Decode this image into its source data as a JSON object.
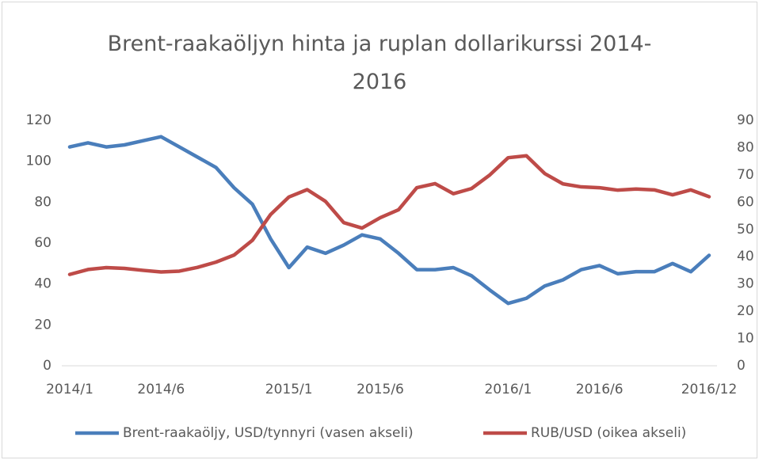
{
  "chart_data": {
    "type": "line",
    "title": "Brent-raakaöljyn hinta ja ruplan dollarikurssi 2014-2016",
    "categories": [
      "2014/1",
      null,
      null,
      null,
      null,
      "2014/6",
      null,
      null,
      null,
      null,
      null,
      null,
      "2015/1",
      null,
      null,
      null,
      null,
      "2015/6",
      null,
      null,
      null,
      null,
      null,
      null,
      "2016/1",
      null,
      null,
      null,
      null,
      "2016/6",
      null,
      null,
      null,
      null,
      null,
      "2016/12"
    ],
    "series": [
      {
        "name": "Brent-raakaöljy, USD/tynnyri (vasen akseli)",
        "color": "#4a7ebb",
        "values": [
          107,
          109,
          107,
          108,
          110,
          112,
          107,
          102,
          97,
          87,
          79,
          62,
          48,
          58,
          55,
          59,
          64,
          62,
          55,
          47,
          47,
          48,
          44,
          37,
          30.5,
          33,
          39,
          42,
          47,
          49,
          45,
          46,
          46,
          50,
          46,
          54
        ]
      },
      {
        "name": "RUB/USD (oikea akseli)",
        "color": "#be4b48",
        "axis": "y2",
        "values": [
          33.5,
          35.3,
          36,
          35.7,
          35,
          34.4,
          34.7,
          36.1,
          38,
          40.6,
          46,
          55.5,
          61.9,
          64.6,
          60.3,
          52.5,
          50.5,
          54.3,
          57.2,
          65.3,
          66.8,
          63.1,
          65,
          70,
          76.3,
          77,
          70.5,
          66.7,
          65.6,
          65.3,
          64.4,
          64.8,
          64.5,
          62.7,
          64.5,
          62
        ]
      }
    ],
    "ylim": [
      0,
      120
    ],
    "yticks": [
      0,
      20,
      40,
      60,
      80,
      100,
      120
    ],
    "y2lim": [
      0,
      90
    ],
    "y2ticks": [
      0,
      10,
      20,
      30,
      40,
      50,
      60,
      70,
      80,
      90
    ],
    "legend": "bottom",
    "grid": false
  }
}
